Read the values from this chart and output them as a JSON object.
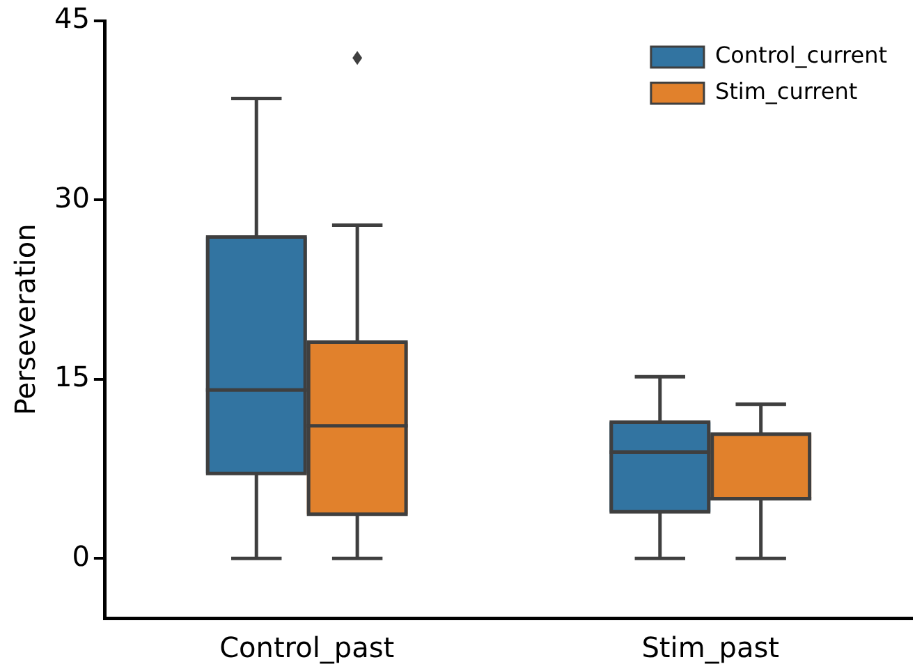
{
  "chart_data": {
    "type": "box",
    "ylabel": "Perseveration",
    "categories": [
      "Control_past",
      "Stim_past"
    ],
    "series": [
      {
        "name": "Control_current",
        "color": "#3274a1",
        "boxes": [
          {
            "low": 0,
            "q1": 7.1,
            "median": 14.1,
            "q3": 26.9,
            "high": 38.5
          },
          {
            "low": 0,
            "q1": 3.9,
            "median": 8.9,
            "q3": 11.4,
            "high": 15.2
          }
        ]
      },
      {
        "name": "Stim_current",
        "color": "#e1812c",
        "boxes": [
          {
            "low": 0,
            "q1": 3.7,
            "median": 11.1,
            "q3": 18.1,
            "high": 27.9,
            "outliers": [
              41.9
            ]
          },
          {
            "low": 0,
            "q1": 5.0,
            "median": 5.0,
            "q3": 10.4,
            "high": 12.9
          }
        ]
      }
    ],
    "ylim": [
      -5,
      45
    ],
    "yticks": [
      0,
      15,
      30,
      45
    ],
    "grid": false,
    "legend": "top right"
  }
}
